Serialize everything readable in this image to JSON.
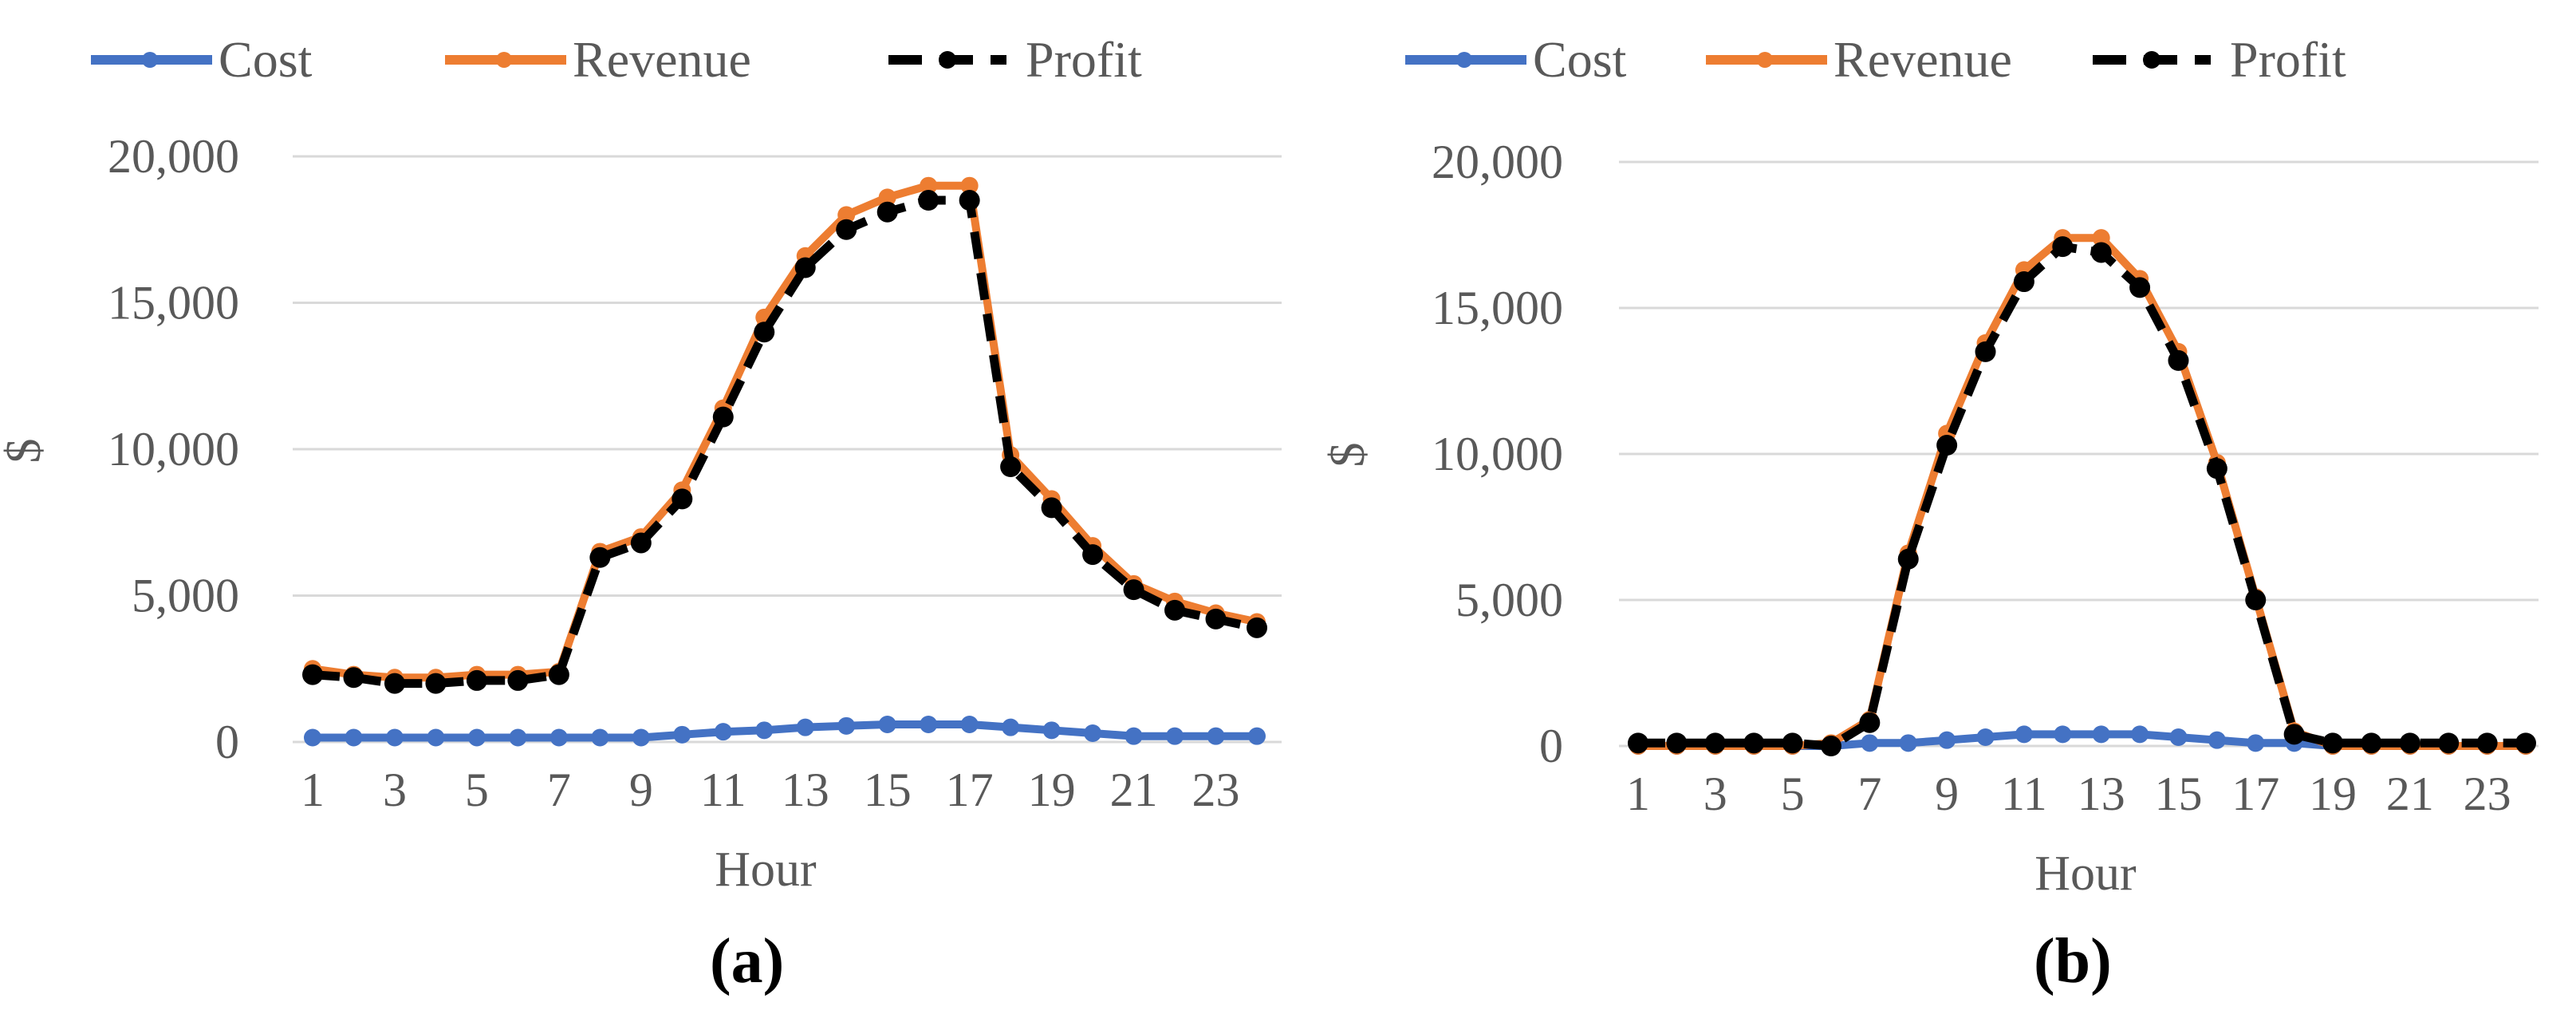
{
  "legend": {
    "items": [
      {
        "label": "Cost",
        "color": "#4472C4",
        "dash": "solid"
      },
      {
        "label": "Revenue",
        "color": "#ED7D31",
        "dash": "solid"
      },
      {
        "label": "Profit",
        "color": "#000000",
        "dash": "dashed"
      }
    ]
  },
  "panels": [
    {
      "label": "(a)",
      "xlabel": "Hour",
      "ylabel": "$"
    },
    {
      "label": "(b)",
      "xlabel": "Hour",
      "ylabel": "$"
    }
  ],
  "colors": {
    "cost": "#4472C4",
    "revenue": "#ED7D31",
    "profit": "#000000",
    "grid": "#D9D9D9",
    "text": "#595959"
  },
  "chart_data": [
    {
      "type": "line",
      "title": "(a)",
      "xlabel": "Hour",
      "ylabel": "$",
      "x": [
        1,
        2,
        3,
        4,
        5,
        6,
        7,
        8,
        9,
        10,
        11,
        12,
        13,
        14,
        15,
        16,
        17,
        18,
        19,
        20,
        21,
        22,
        23,
        24
      ],
      "x_tick_labels": [
        "1",
        "3",
        "5",
        "7",
        "9",
        "11",
        "13",
        "15",
        "17",
        "19",
        "21",
        "23"
      ],
      "y_tick_labels": [
        "0",
        "5,000",
        "10,000",
        "15,000",
        "20,000"
      ],
      "ylim": [
        0,
        20000
      ],
      "grid": true,
      "legend_position": "top",
      "series": [
        {
          "name": "Cost",
          "values": [
            150,
            150,
            150,
            150,
            150,
            150,
            150,
            150,
            150,
            250,
            350,
            400,
            500,
            550,
            600,
            600,
            600,
            500,
            400,
            300,
            200,
            200,
            200,
            200
          ]
        },
        {
          "name": "Revenue",
          "values": [
            2500,
            2300,
            2200,
            2200,
            2300,
            2300,
            2400,
            6500,
            7000,
            8600,
            11400,
            14500,
            16600,
            18000,
            18600,
            19000,
            19000,
            9800,
            8300,
            6700,
            5400,
            4800,
            4400,
            4100
          ]
        },
        {
          "name": "Profit",
          "values": [
            2300,
            2200,
            2000,
            2000,
            2100,
            2100,
            2300,
            6300,
            6800,
            8300,
            11100,
            14000,
            16200,
            17500,
            18100,
            18500,
            18500,
            9400,
            8000,
            6400,
            5200,
            4500,
            4200,
            3900
          ]
        }
      ]
    },
    {
      "type": "line",
      "title": "(b)",
      "xlabel": "Hour",
      "ylabel": "$",
      "x": [
        1,
        2,
        3,
        4,
        5,
        6,
        7,
        8,
        9,
        10,
        11,
        12,
        13,
        14,
        15,
        16,
        17,
        18,
        19,
        20,
        21,
        22,
        23,
        24
      ],
      "x_tick_labels": [
        "1",
        "3",
        "5",
        "7",
        "9",
        "11",
        "13",
        "15",
        "17",
        "19",
        "21",
        "23"
      ],
      "y_tick_labels": [
        "0",
        "5,000",
        "10,000",
        "15,000",
        "20,000"
      ],
      "ylim": [
        0,
        20000
      ],
      "grid": true,
      "legend_position": "top",
      "series": [
        {
          "name": "Cost",
          "values": [
            0,
            0,
            0,
            0,
            0,
            0,
            100,
            100,
            200,
            300,
            400,
            400,
            400,
            400,
            300,
            200,
            100,
            100,
            0,
            0,
            0,
            0,
            0,
            0
          ]
        },
        {
          "name": "Revenue",
          "values": [
            0,
            0,
            0,
            0,
            0,
            100,
            900,
            6600,
            10700,
            13800,
            16300,
            17400,
            17400,
            16000,
            13500,
            9700,
            5100,
            500,
            0,
            0,
            0,
            0,
            0,
            0
          ]
        },
        {
          "name": "Profit",
          "values": [
            100,
            100,
            100,
            100,
            100,
            0,
            800,
            6400,
            10300,
            13500,
            15900,
            17100,
            16900,
            15700,
            13200,
            9500,
            5000,
            400,
            100,
            100,
            100,
            100,
            100,
            100
          ]
        }
      ]
    }
  ]
}
